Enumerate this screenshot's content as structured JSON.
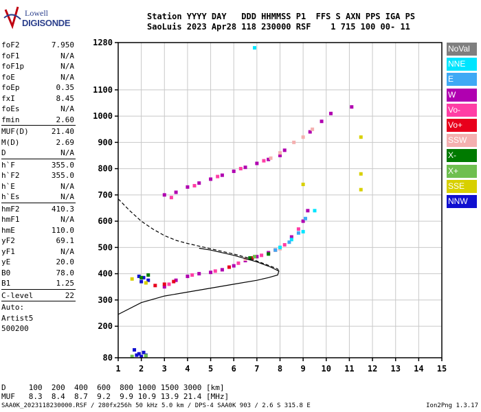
{
  "logo": {
    "line1": "Lowell",
    "line2": "DIGISONDE"
  },
  "header": {
    "line1": "Station YYYY DAY   DDD HHMMSS P1  FFS S AXN PPS IGA PS",
    "line2": "SaoLuis 2023 Apr28 118 230000 RSF    1 715 100 00- 11"
  },
  "params": [
    {
      "name": "foF2",
      "value": "7.950"
    },
    {
      "name": "foF1",
      "value": "N/A"
    },
    {
      "name": "foF1p",
      "value": "N/A"
    },
    {
      "name": "foE",
      "value": "N/A"
    },
    {
      "name": "foEp",
      "value": "0.35"
    },
    {
      "name": "fxI",
      "value": "8.45"
    },
    {
      "name": "foEs",
      "value": "N/A"
    },
    {
      "name": "fmin",
      "value": "2.60"
    },
    {
      "sep": true
    },
    {
      "name": "MUF(D)",
      "value": "21.40"
    },
    {
      "name": "M(D)",
      "value": "2.69"
    },
    {
      "name": "D",
      "value": "N/A"
    },
    {
      "sep": true
    },
    {
      "name": "h`F",
      "value": "355.0"
    },
    {
      "name": "h`F2",
      "value": "355.0"
    },
    {
      "name": "h`E",
      "value": "N/A"
    },
    {
      "name": "h`Es",
      "value": "N/A"
    },
    {
      "sep": true
    },
    {
      "name": "hmF2",
      "value": "410.3"
    },
    {
      "name": "hmF1",
      "value": "N/A"
    },
    {
      "name": "hmE",
      "value": "110.0"
    },
    {
      "name": "yF2",
      "value": "69.1"
    },
    {
      "name": "yF1",
      "value": "N/A"
    },
    {
      "name": "yE",
      "value": "20.0"
    },
    {
      "name": "B0",
      "value": "78.0"
    },
    {
      "name": "B1",
      "value": "1.25"
    },
    {
      "sep": true
    },
    {
      "name": "C-level",
      "value": "22"
    },
    {
      "sep": true
    },
    {
      "text": "Auto:"
    },
    {
      "text": "Artist5"
    },
    {
      "text": "500200"
    }
  ],
  "legend": [
    {
      "label": "NoVal",
      "color": "#7f7f7f"
    },
    {
      "label": "NNE",
      "color": "#00e5ff"
    },
    {
      "label": "E",
      "color": "#3fa9f5"
    },
    {
      "label": "W",
      "color": "#b000b0"
    },
    {
      "label": "Vo-",
      "color": "#ff3ea5"
    },
    {
      "label": "Vo+",
      "color": "#e8001c"
    },
    {
      "label": "SSW",
      "color": "#f4b0b0"
    },
    {
      "label": "X-",
      "color": "#007a00"
    },
    {
      "label": "X+",
      "color": "#6fbf4f"
    },
    {
      "label": "SSE",
      "color": "#d8d000"
    },
    {
      "label": "NNW",
      "color": "#1010d0"
    }
  ],
  "bottom": {
    "row1": "D     100  200  400  600  800 1000 1500 3000 [km]",
    "row2": "MUF   8.3  8.4  8.7  9.2  9.9 10.9 13.9 21.4 [MHz]"
  },
  "footer": "SAA0K_2023118230000.RSF / 280fx256h 50 kHz 5.0 km / DPS-4 SAA0K 903 / 2.6 S 315.8 E",
  "version": "Ion2Png 1.3.17",
  "chart_data": {
    "type": "scatter",
    "xlim": [
      1,
      15
    ],
    "ylim": [
      80,
      1280
    ],
    "x_ticks": [
      1,
      2,
      3,
      4,
      5,
      6,
      7,
      8,
      9,
      10,
      11,
      12,
      13,
      14,
      15
    ],
    "y_ticks": [
      80,
      200,
      300,
      400,
      500,
      600,
      700,
      800,
      900,
      1000,
      1100,
      1280
    ],
    "grid": true,
    "series": [
      {
        "color": "#b000b0",
        "points": [
          [
            3,
            350
          ],
          [
            3.5,
            375
          ],
          [
            4,
            390
          ],
          [
            4.5,
            400
          ],
          [
            5,
            405
          ],
          [
            5.5,
            415
          ],
          [
            6,
            430
          ],
          [
            6.5,
            450
          ],
          [
            7,
            465
          ],
          [
            7.5,
            480
          ],
          [
            8,
            500
          ],
          [
            8.5,
            540
          ],
          [
            9,
            600
          ],
          [
            9.2,
            640
          ],
          [
            3,
            700
          ],
          [
            3.5,
            710
          ],
          [
            4,
            730
          ],
          [
            4.5,
            745
          ],
          [
            5,
            760
          ],
          [
            5.5,
            775
          ],
          [
            6,
            790
          ],
          [
            6.5,
            805
          ],
          [
            7,
            820
          ],
          [
            7.5,
            835
          ],
          [
            8,
            850
          ],
          [
            8.2,
            870
          ],
          [
            9.3,
            940
          ],
          [
            9.8,
            980
          ],
          [
            10.2,
            1010
          ],
          [
            11.1,
            1035
          ]
        ]
      },
      {
        "color": "#ff3ea5",
        "points": [
          [
            3.2,
            360
          ],
          [
            4.2,
            395
          ],
          [
            5.2,
            410
          ],
          [
            6.2,
            440
          ],
          [
            7.2,
            470
          ],
          [
            8.2,
            510
          ],
          [
            8.8,
            570
          ],
          [
            3.3,
            690
          ],
          [
            4.3,
            735
          ],
          [
            5.3,
            770
          ],
          [
            6.3,
            800
          ],
          [
            7.3,
            830
          ]
        ]
      },
      {
        "color": "#e8001c",
        "points": [
          [
            2.6,
            355
          ],
          [
            3,
            360
          ],
          [
            3.4,
            370
          ],
          [
            5.8,
            425
          ],
          [
            6.8,
            460
          ],
          [
            7.8,
            490
          ]
        ]
      },
      {
        "color": "#f4b0b0",
        "points": [
          [
            7.6,
            840
          ],
          [
            8,
            860
          ],
          [
            8.6,
            900
          ],
          [
            9,
            920
          ],
          [
            9.4,
            950
          ],
          [
            6.5,
            455
          ],
          [
            8,
            495
          ]
        ]
      },
      {
        "color": "#00e5ff",
        "points": [
          [
            8,
            500
          ],
          [
            8.5,
            530
          ],
          [
            9,
            560
          ],
          [
            9.5,
            640
          ],
          [
            6.9,
            1260
          ]
        ]
      },
      {
        "color": "#3fa9f5",
        "points": [
          [
            7.8,
            490
          ],
          [
            8.4,
            520
          ],
          [
            8.8,
            555
          ],
          [
            9.1,
            610
          ]
        ]
      },
      {
        "color": "#1010d0",
        "points": [
          [
            1.8,
            90
          ],
          [
            1.9,
            95
          ],
          [
            2,
            85
          ],
          [
            2.1,
            100
          ],
          [
            1.7,
            110
          ],
          [
            2.2,
            90
          ],
          [
            1.9,
            390
          ],
          [
            2.1,
            385
          ],
          [
            2.3,
            375
          ],
          [
            2,
            370
          ]
        ]
      },
      {
        "color": "#007a00",
        "points": [
          [
            2,
            385
          ],
          [
            2.3,
            395
          ],
          [
            6.7,
            460
          ],
          [
            7.5,
            475
          ]
        ]
      },
      {
        "color": "#6fbf4f",
        "points": [
          [
            1.6,
            85
          ],
          [
            2.2,
            88
          ],
          [
            6.9,
            465
          ]
        ]
      },
      {
        "color": "#d8d000",
        "points": [
          [
            1.6,
            380
          ],
          [
            2.2,
            365
          ],
          [
            11.5,
            920
          ],
          [
            11.5,
            780
          ],
          [
            11.5,
            720
          ],
          [
            9,
            740
          ]
        ]
      }
    ],
    "curves": [
      {
        "style": "solid",
        "points": [
          [
            1,
            245
          ],
          [
            2,
            290
          ],
          [
            3,
            315
          ],
          [
            4,
            330
          ],
          [
            5,
            345
          ],
          [
            6,
            360
          ],
          [
            7,
            375
          ],
          [
            7.5,
            385
          ],
          [
            7.9,
            395
          ],
          [
            7.95,
            410
          ],
          [
            7.6,
            425
          ],
          [
            7,
            445
          ],
          [
            6,
            470
          ],
          [
            5,
            490
          ],
          [
            4.5,
            497
          ]
        ]
      },
      {
        "style": "dashed",
        "points": [
          [
            1,
            685
          ],
          [
            1.5,
            640
          ],
          [
            2,
            600
          ],
          [
            2.5,
            570
          ],
          [
            3,
            545
          ],
          [
            3.5,
            527
          ],
          [
            4,
            515
          ],
          [
            4.5,
            505
          ],
          [
            5,
            495
          ],
          [
            5.5,
            485
          ],
          [
            6,
            475
          ],
          [
            6.5,
            463
          ],
          [
            7,
            448
          ],
          [
            7.5,
            432
          ],
          [
            7.9,
            418
          ],
          [
            7.95,
            410
          ]
        ]
      }
    ]
  }
}
